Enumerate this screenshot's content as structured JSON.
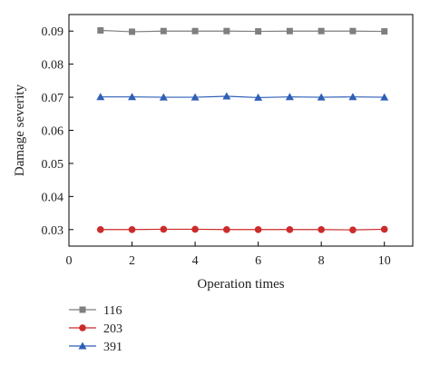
{
  "chart_data": {
    "type": "line",
    "xlabel": "Operation times",
    "ylabel": "Damage severity",
    "xlim": [
      0,
      10.9
    ],
    "ylim": [
      0.025,
      0.095
    ],
    "xticks": [
      0,
      2,
      4,
      6,
      8,
      10
    ],
    "xtick_labels": [
      "0",
      "2",
      "4",
      "6",
      "8",
      "10"
    ],
    "yticks": [
      0.03,
      0.04,
      0.05,
      0.06,
      0.07,
      0.08,
      0.09
    ],
    "ytick_labels": [
      "0.03",
      "0.04",
      "0.05",
      "0.06",
      "0.07",
      "0.08",
      "0.09"
    ],
    "grid": false,
    "legend_position": "bottom-left",
    "x": [
      1,
      2,
      3,
      4,
      5,
      6,
      7,
      8,
      9,
      10
    ],
    "series": [
      {
        "name": "116",
        "color": "#7f7f7f",
        "marker": "square",
        "values": [
          0.0902,
          0.0898,
          0.09,
          0.09,
          0.09,
          0.0899,
          0.09,
          0.09,
          0.09,
          0.0899
        ]
      },
      {
        "name": "203",
        "color": "#cc2b2b",
        "marker": "circle",
        "values": [
          0.03,
          0.03,
          0.0301,
          0.0301,
          0.03,
          0.03,
          0.03,
          0.03,
          0.0299,
          0.0301
        ]
      },
      {
        "name": "391",
        "color": "#2e5fb8",
        "marker": "triangle",
        "values": [
          0.0701,
          0.0701,
          0.07,
          0.07,
          0.0703,
          0.0699,
          0.0701,
          0.07,
          0.0701,
          0.07
        ]
      }
    ]
  }
}
